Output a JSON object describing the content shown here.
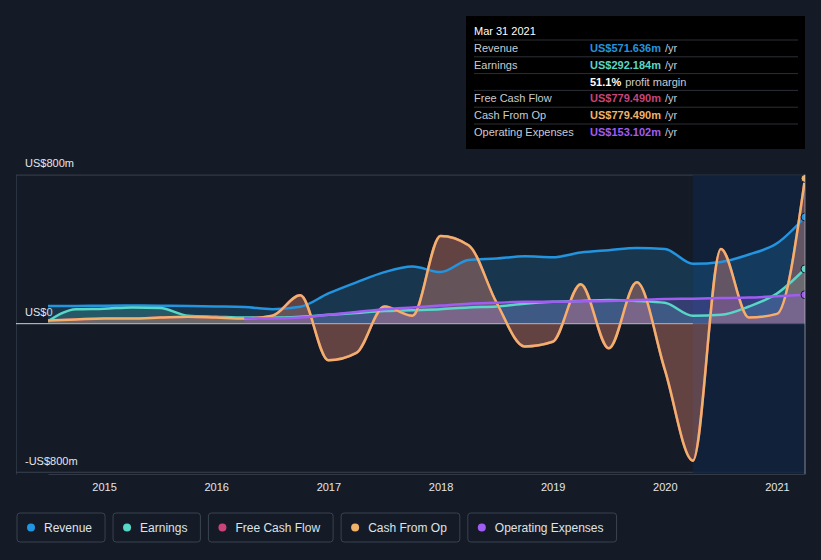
{
  "chart_data": {
    "type": "line",
    "x": [
      2014.5,
      2014.75,
      2015,
      2015.25,
      2015.5,
      2015.75,
      2016,
      2016.25,
      2016.5,
      2016.75,
      2017,
      2017.25,
      2017.5,
      2017.75,
      2018,
      2018.25,
      2018.5,
      2018.75,
      2019,
      2019.25,
      2019.5,
      2019.75,
      2020,
      2020.25,
      2020.5,
      2020.75,
      2021,
      2021.25
    ],
    "xlim": [
      2014.5,
      2021.25
    ],
    "xticks": [
      2015,
      2016,
      2017,
      2018,
      2019,
      2020,
      2021
    ],
    "ylim": [
      -812,
      800
    ],
    "yticks": [
      {
        "value": 800,
        "label": "US$800m"
      },
      {
        "value": 0,
        "label": "US$0"
      },
      {
        "value": -800,
        "label": "-US$800m"
      }
    ],
    "grid": true,
    "legend": "bottom",
    "series": [
      {
        "name": "Revenue",
        "color": "#2394df",
        "values": [
          92,
          93,
          94,
          95,
          94,
          92,
          90,
          87,
          75,
          88,
          160,
          220,
          275,
          305,
          275,
          340,
          348,
          360,
          355,
          380,
          393,
          405,
          400,
          320,
          330,
          370,
          430,
          571.636
        ]
      },
      {
        "name": "Earnings",
        "color": "#58d6c6",
        "values": [
          10,
          75,
          78,
          85,
          82,
          40,
          35,
          30,
          30,
          35,
          45,
          55,
          65,
          70,
          75,
          85,
          90,
          105,
          115,
          120,
          125,
          120,
          110,
          40,
          45,
          90,
          160,
          292.184
        ]
      },
      {
        "name": "Free Cash Flow",
        "color": "#c8447a",
        "values": [
          15,
          20,
          25,
          25,
          30,
          35,
          30,
          25,
          40,
          150,
          -200,
          -160,
          90,
          40,
          470,
          420,
          110,
          -125,
          -100,
          210,
          -135,
          220,
          -250,
          -740,
          400,
          30,
          50,
          779.49
        ]
      },
      {
        "name": "Cash From Op",
        "color": "#f0b26a",
        "values": [
          15,
          20,
          25,
          25,
          30,
          35,
          30,
          25,
          40,
          150,
          -200,
          -160,
          90,
          40,
          470,
          420,
          110,
          -125,
          -100,
          210,
          -135,
          220,
          -250,
          -740,
          400,
          30,
          50,
          779.49
        ]
      },
      {
        "name": "Operating Expenses",
        "color": "#a15cf2",
        "values": [
          null,
          null,
          null,
          null,
          null,
          null,
          null,
          27,
          25,
          30,
          45,
          60,
          75,
          85,
          95,
          105,
          110,
          115,
          115,
          118,
          120,
          125,
          130,
          132,
          135,
          138,
          145,
          153.102
        ]
      }
    ],
    "tooltip": {
      "date": "Mar 31 2021",
      "rows": [
        {
          "label": "Revenue",
          "value": "US$571.636m",
          "unit": "/yr"
        },
        {
          "label": "Earnings",
          "value": "US$292.184m",
          "unit": "/yr"
        },
        {
          "value": "51.1%",
          "unit": "profit margin"
        },
        {
          "label": "Free Cash Flow",
          "value": "US$779.490m",
          "unit": "/yr"
        },
        {
          "label": "Cash From Op",
          "value": "US$779.490m",
          "unit": "/yr"
        },
        {
          "label": "Operating Expenses",
          "value": "US$153.102m",
          "unit": "/yr"
        }
      ]
    }
  }
}
